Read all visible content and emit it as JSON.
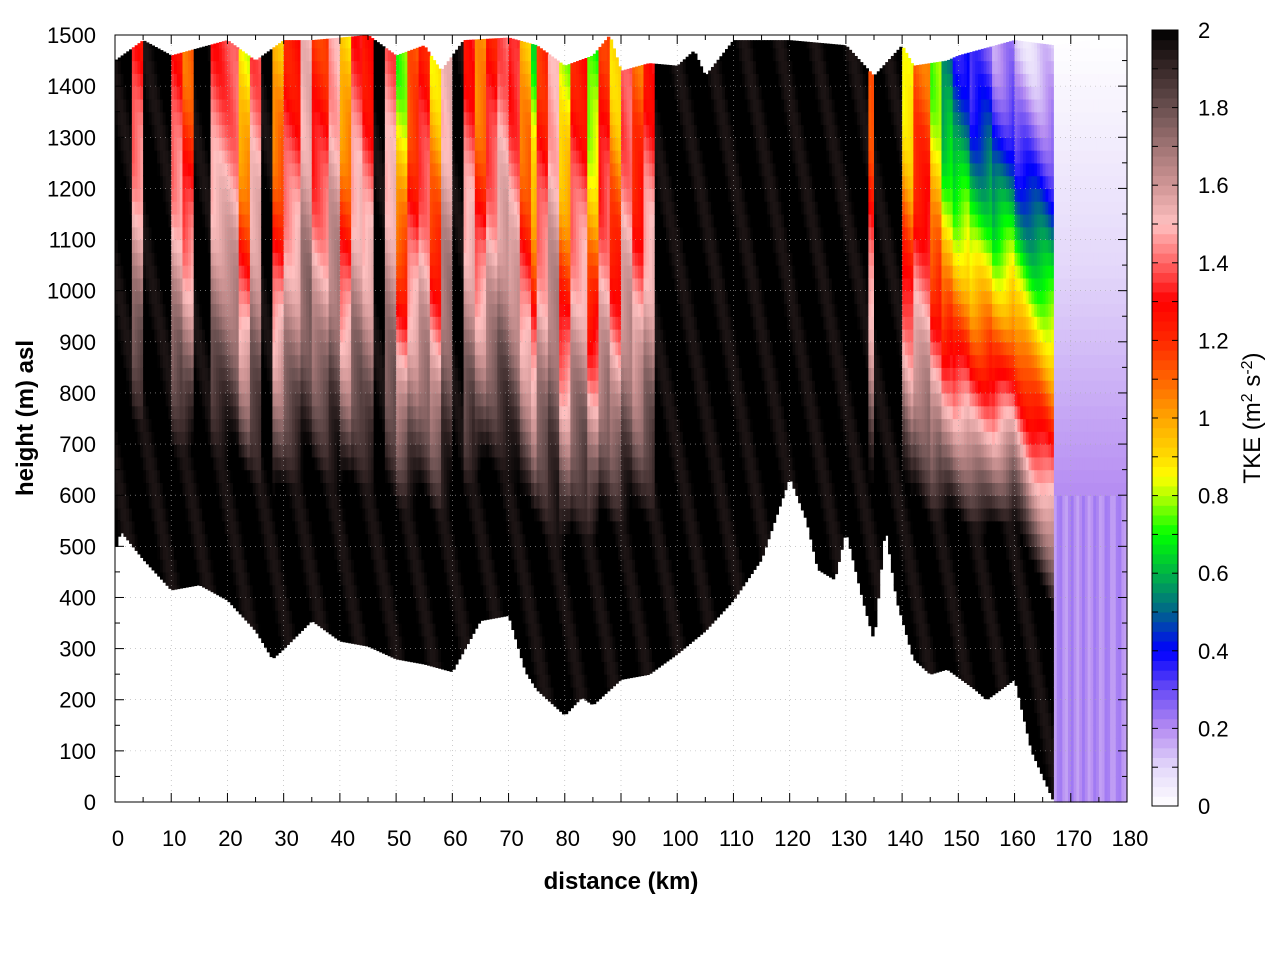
{
  "chart_data": {
    "type": "heatmap",
    "title": "",
    "xlabel": "distance (km)",
    "ylabel": "height (m) asl",
    "xlim": [
      0,
      180
    ],
    "ylim": [
      0,
      1500
    ],
    "x_ticks": [
      "0",
      "10",
      "20",
      "30",
      "40",
      "50",
      "60",
      "70",
      "80",
      "90",
      "100",
      "110",
      "120",
      "130",
      "140",
      "150",
      "160",
      "170",
      "180"
    ],
    "y_ticks": [
      "0",
      "100",
      "200",
      "300",
      "400",
      "500",
      "600",
      "700",
      "800",
      "900",
      "1000",
      "1100",
      "1200",
      "1300",
      "1400",
      "1500"
    ],
    "grid": true,
    "colorbar": {
      "label_main": "TKE (m",
      "label_sup1": "2",
      "label_mid": " s",
      "label_sup2": "-2",
      "label_end": ")",
      "range": [
        0,
        2
      ],
      "ticks": [
        "0",
        "0.2",
        "0.4",
        "0.6",
        "0.8",
        "1",
        "1.2",
        "1.4",
        "1.6",
        "1.8",
        "2"
      ],
      "colormap": [
        [
          0.0,
          "#ffffff"
        ],
        [
          0.1,
          "#e4d8fa"
        ],
        [
          0.2,
          "#b58cf2"
        ],
        [
          0.3,
          "#6a4cf5"
        ],
        [
          0.4,
          "#0000ff"
        ],
        [
          0.5,
          "#00648c"
        ],
        [
          0.6,
          "#00b446"
        ],
        [
          0.7,
          "#00ff00"
        ],
        [
          0.8,
          "#b4ff00"
        ],
        [
          0.85,
          "#ffff00"
        ],
        [
          0.9,
          "#ffdc00"
        ],
        [
          1.0,
          "#ffa500"
        ],
        [
          1.1,
          "#ff6400"
        ],
        [
          1.2,
          "#ff2800"
        ],
        [
          1.3,
          "#ff0000"
        ],
        [
          1.4,
          "#ff6464"
        ],
        [
          1.5,
          "#ffc0c0"
        ],
        [
          1.6,
          "#d09696"
        ],
        [
          1.7,
          "#a07474"
        ],
        [
          1.8,
          "#6a5050"
        ],
        [
          1.9,
          "#382828"
        ],
        [
          2.0,
          "#000000"
        ]
      ]
    },
    "terrain_height_m": {
      "distance_km": [
        0,
        1,
        5,
        10,
        15,
        20,
        25,
        28,
        30,
        35,
        40,
        45,
        50,
        55,
        60,
        65,
        70,
        73,
        75,
        80,
        83,
        85,
        90,
        95,
        100,
        105,
        110,
        115,
        120,
        123,
        125,
        128,
        130,
        133,
        135,
        137,
        139,
        142,
        145,
        148,
        153,
        155,
        160,
        163,
        166,
        167
      ],
      "height_m": [
        490,
        530,
        475,
        415,
        425,
        395,
        335,
        280,
        300,
        355,
        315,
        305,
        280,
        270,
        255,
        355,
        365,
        255,
        220,
        170,
        205,
        190,
        240,
        250,
        290,
        335,
        395,
        475,
        635,
        550,
        455,
        435,
        530,
        395,
        315,
        540,
        395,
        280,
        250,
        260,
        220,
        200,
        240,
        100,
        25,
        0
      ]
    },
    "top_height_m": {
      "distance_km": [
        0,
        5,
        10,
        20,
        25,
        30,
        35,
        45,
        50,
        55,
        58,
        62,
        70,
        75,
        80,
        85,
        88,
        90,
        95,
        100,
        103,
        105,
        110,
        120,
        130,
        135,
        140,
        142,
        148,
        150,
        160,
        167,
        180
      ],
      "height_m": [
        1450,
        1490,
        1460,
        1490,
        1450,
        1490,
        1490,
        1500,
        1460,
        1480,
        1430,
        1490,
        1495,
        1480,
        1440,
        1460,
        1500,
        1430,
        1445,
        1440,
        1470,
        1420,
        1490,
        1490,
        1480,
        1420,
        1480,
        1440,
        1450,
        1460,
        1490,
        1480,
        1500
      ]
    },
    "tke_aloft_by_segment": [
      [
        0,
        3,
        2.0
      ],
      [
        3,
        5,
        1.3
      ],
      [
        5,
        10,
        2.0
      ],
      [
        10,
        12,
        1.3
      ],
      [
        12,
        14,
        1.1
      ],
      [
        14,
        17,
        2.0
      ],
      [
        17,
        22,
        1.35
      ],
      [
        22,
        24,
        0.85
      ],
      [
        24,
        26,
        1.4
      ],
      [
        26,
        28,
        2.0
      ],
      [
        28,
        30,
        0.95
      ],
      [
        30,
        33,
        1.25
      ],
      [
        33,
        35,
        1.5
      ],
      [
        35,
        38,
        1.2
      ],
      [
        38,
        40,
        1.45
      ],
      [
        40,
        42,
        0.9
      ],
      [
        42,
        44,
        1.35
      ],
      [
        44,
        46,
        1.25
      ],
      [
        46,
        48,
        2.0
      ],
      [
        48,
        50,
        1.4
      ],
      [
        50,
        52,
        0.75
      ],
      [
        52,
        54,
        1.1
      ],
      [
        54,
        56,
        1.25
      ],
      [
        56,
        58,
        0.9
      ],
      [
        58,
        60,
        1.5
      ],
      [
        60,
        62,
        2.0
      ],
      [
        62,
        64,
        1.3
      ],
      [
        64,
        66,
        1.0
      ],
      [
        66,
        68,
        1.25
      ],
      [
        68,
        70,
        1.4
      ],
      [
        70,
        72,
        1.3
      ],
      [
        72,
        74,
        0.95
      ],
      [
        74,
        75,
        0.7
      ],
      [
        75,
        77,
        1.2
      ],
      [
        77,
        79,
        1.45
      ],
      [
        79,
        81,
        0.8
      ],
      [
        81,
        84,
        1.25
      ],
      [
        84,
        86,
        0.7
      ],
      [
        86,
        88,
        1.2
      ],
      [
        88,
        90,
        0.9
      ],
      [
        90,
        92,
        1.35
      ],
      [
        92,
        94,
        1.1
      ],
      [
        94,
        96,
        1.3
      ],
      [
        96,
        134,
        2.0
      ],
      [
        134,
        135,
        1.1
      ],
      [
        135,
        140,
        2.0
      ],
      [
        140,
        142,
        0.8
      ],
      [
        142,
        145,
        1.1
      ],
      [
        145,
        147,
        0.75
      ],
      [
        147,
        149,
        0.5
      ],
      [
        149,
        152,
        0.4
      ],
      [
        152,
        156,
        0.3
      ],
      [
        156,
        160,
        0.2
      ],
      [
        160,
        167,
        0.1
      ],
      [
        167,
        180,
        0.2
      ]
    ]
  }
}
